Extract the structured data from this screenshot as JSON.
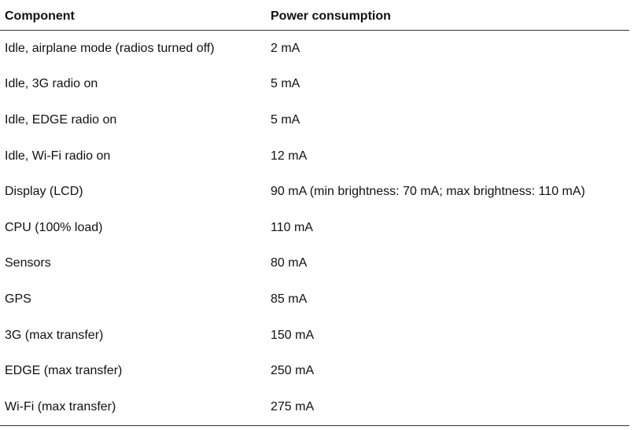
{
  "table": {
    "headers": {
      "component": "Component",
      "power": "Power consumption"
    },
    "rows": [
      {
        "component": "Idle, airplane mode (radios turned off)",
        "power": "2 mA"
      },
      {
        "component": "Idle, 3G radio on",
        "power": "5 mA"
      },
      {
        "component": "Idle, EDGE radio on",
        "power": "5 mA"
      },
      {
        "component": "Idle, Wi-Fi radio on",
        "power": "12 mA"
      },
      {
        "component": "Display (LCD)",
        "power": "90 mA (min brightness: 70 mA; max brightness: 110 mA)"
      },
      {
        "component": "CPU (100% load)",
        "power": "110 mA"
      },
      {
        "component": "Sensors",
        "power": "80 mA"
      },
      {
        "component": "GPS",
        "power": "85 mA"
      },
      {
        "component": "3G (max transfer)",
        "power": "150 mA"
      },
      {
        "component": "EDGE (max transfer)",
        "power": "250 mA"
      },
      {
        "component": "Wi-Fi (max transfer)",
        "power": "275 mA"
      }
    ]
  }
}
